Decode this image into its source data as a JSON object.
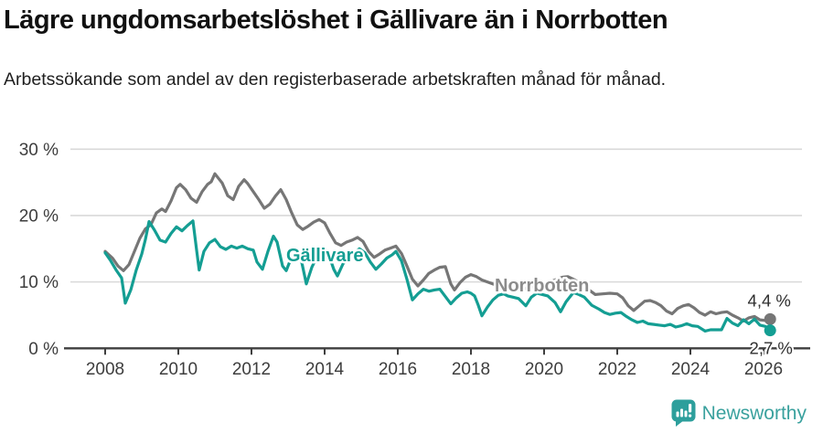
{
  "header": {
    "title": "Lägre ungdomsarbetslöshet i Gällivare än i Norrbotten",
    "subtitle": "Arbetssökande som andel av den registerbaserade arbetskraften månad för månad."
  },
  "footer": {
    "brand": "Newsworthy"
  },
  "colors": {
    "gallivare": "#149e93",
    "norrbotten": "#767676",
    "norrbotten_label": "#8c8c8c",
    "gridline": "#d9d9d9",
    "axis": "#3f3f3f",
    "tick_text": "#3d3d3d",
    "end_label_text": "#2e2e2e",
    "brand_teal": "#3aa19e"
  },
  "chart_data": {
    "type": "line",
    "title": "Lägre ungdomsarbetslöshet i Gällivare än i Norrbotten",
    "subtitle": "Arbetssökande som andel av den registerbaserade arbetskraften månad för månad.",
    "unit": "%",
    "grid": true,
    "legend_position": "inline-labels",
    "x_axis": {
      "tick_years": [
        2008,
        2010,
        2012,
        2014,
        2016,
        2018,
        2020,
        2022,
        2024,
        2026
      ],
      "range": [
        2008.0,
        2026.2
      ]
    },
    "y_axis": {
      "range": [
        0,
        30
      ],
      "ticks": [
        {
          "value": 0,
          "label": "0 %"
        },
        {
          "value": 10,
          "label": "10 %"
        },
        {
          "value": 20,
          "label": "20 %"
        },
        {
          "value": 30,
          "label": "30 %"
        }
      ]
    },
    "series": [
      {
        "name": "Norrbotten",
        "color": "#767676",
        "label_color": "#8c8c8c",
        "label_pos": {
          "year": 2018.65,
          "value": 8.6
        },
        "end_label": "4,4 %",
        "end_value": 4.4,
        "end_label_side": "above",
        "points": [
          [
            2008.0,
            14.6
          ],
          [
            2008.2,
            13.6
          ],
          [
            2008.35,
            12.4
          ],
          [
            2008.5,
            11.7
          ],
          [
            2008.65,
            12.6
          ],
          [
            2008.8,
            14.6
          ],
          [
            2008.95,
            16.6
          ],
          [
            2009.1,
            18.0
          ],
          [
            2009.25,
            18.6
          ],
          [
            2009.4,
            20.4
          ],
          [
            2009.55,
            21.0
          ],
          [
            2009.65,
            20.6
          ],
          [
            2009.8,
            22.2
          ],
          [
            2009.95,
            24.2
          ],
          [
            2010.05,
            24.7
          ],
          [
            2010.2,
            23.9
          ],
          [
            2010.35,
            22.6
          ],
          [
            2010.5,
            22.0
          ],
          [
            2010.65,
            23.6
          ],
          [
            2010.8,
            24.7
          ],
          [
            2010.9,
            25.1
          ],
          [
            2011.0,
            26.3
          ],
          [
            2011.1,
            25.6
          ],
          [
            2011.2,
            24.9
          ],
          [
            2011.35,
            23.0
          ],
          [
            2011.5,
            22.4
          ],
          [
            2011.65,
            24.4
          ],
          [
            2011.8,
            25.4
          ],
          [
            2011.9,
            24.8
          ],
          [
            2012.05,
            23.6
          ],
          [
            2012.2,
            22.4
          ],
          [
            2012.35,
            21.1
          ],
          [
            2012.5,
            21.7
          ],
          [
            2012.65,
            22.9
          ],
          [
            2012.8,
            23.9
          ],
          [
            2012.95,
            22.4
          ],
          [
            2013.1,
            20.4
          ],
          [
            2013.25,
            18.6
          ],
          [
            2013.4,
            17.9
          ],
          [
            2013.55,
            18.4
          ],
          [
            2013.7,
            19.0
          ],
          [
            2013.85,
            19.4
          ],
          [
            2014.0,
            18.9
          ],
          [
            2014.15,
            17.3
          ],
          [
            2014.3,
            15.9
          ],
          [
            2014.45,
            15.5
          ],
          [
            2014.6,
            16.0
          ],
          [
            2014.75,
            16.3
          ],
          [
            2014.9,
            16.7
          ],
          [
            2015.05,
            16.1
          ],
          [
            2015.2,
            14.6
          ],
          [
            2015.35,
            13.7
          ],
          [
            2015.5,
            14.2
          ],
          [
            2015.65,
            14.8
          ],
          [
            2015.8,
            15.1
          ],
          [
            2015.95,
            15.4
          ],
          [
            2016.1,
            14.3
          ],
          [
            2016.25,
            12.4
          ],
          [
            2016.4,
            10.4
          ],
          [
            2016.55,
            9.4
          ],
          [
            2016.7,
            10.3
          ],
          [
            2016.85,
            11.3
          ],
          [
            2017.0,
            11.8
          ],
          [
            2017.15,
            12.2
          ],
          [
            2017.3,
            12.3
          ],
          [
            2017.45,
            9.7
          ],
          [
            2017.55,
            8.8
          ],
          [
            2017.7,
            9.9
          ],
          [
            2017.85,
            10.7
          ],
          [
            2018.0,
            11.1
          ],
          [
            2018.15,
            10.8
          ],
          [
            2018.3,
            10.3
          ],
          [
            2018.5,
            9.9
          ],
          [
            2018.7,
            9.5
          ],
          [
            2018.9,
            9.7
          ],
          [
            2019.1,
            9.7
          ],
          [
            2019.3,
            9.3
          ],
          [
            2019.5,
            9.0
          ],
          [
            2019.7,
            9.3
          ],
          [
            2019.9,
            9.7
          ],
          [
            2020.1,
            9.9
          ],
          [
            2020.3,
            10.3
          ],
          [
            2020.5,
            10.7
          ],
          [
            2020.65,
            10.8
          ],
          [
            2020.8,
            10.4
          ],
          [
            2021.0,
            9.8
          ],
          [
            2021.2,
            8.9
          ],
          [
            2021.4,
            8.1
          ],
          [
            2021.6,
            8.2
          ],
          [
            2021.8,
            8.3
          ],
          [
            2022.0,
            8.2
          ],
          [
            2022.15,
            7.6
          ],
          [
            2022.3,
            6.4
          ],
          [
            2022.45,
            5.7
          ],
          [
            2022.6,
            6.4
          ],
          [
            2022.75,
            7.1
          ],
          [
            2022.9,
            7.2
          ],
          [
            2023.05,
            6.9
          ],
          [
            2023.2,
            6.4
          ],
          [
            2023.35,
            5.6
          ],
          [
            2023.5,
            5.2
          ],
          [
            2023.65,
            6.0
          ],
          [
            2023.8,
            6.4
          ],
          [
            2023.95,
            6.6
          ],
          [
            2024.1,
            6.1
          ],
          [
            2024.25,
            5.4
          ],
          [
            2024.4,
            5.0
          ],
          [
            2024.55,
            5.5
          ],
          [
            2024.7,
            5.2
          ],
          [
            2024.85,
            5.4
          ],
          [
            2025.0,
            5.5
          ],
          [
            2025.15,
            5.0
          ],
          [
            2025.3,
            4.6
          ],
          [
            2025.45,
            4.1
          ],
          [
            2025.6,
            4.6
          ],
          [
            2025.75,
            4.8
          ],
          [
            2025.9,
            4.3
          ],
          [
            2026.05,
            4.2
          ],
          [
            2026.18,
            4.4
          ]
        ]
      },
      {
        "name": "Gällivare",
        "color": "#149e93",
        "label_color": "#149e93",
        "label_pos": {
          "year": 2012.95,
          "value": 13.1
        },
        "end_label": "2,7 %",
        "end_value": 2.7,
        "end_label_side": "below",
        "points": [
          [
            2008.0,
            14.4
          ],
          [
            2008.15,
            13.2
          ],
          [
            2008.3,
            11.8
          ],
          [
            2008.45,
            10.6
          ],
          [
            2008.55,
            6.8
          ],
          [
            2008.7,
            8.8
          ],
          [
            2008.85,
            11.8
          ],
          [
            2009.0,
            14.2
          ],
          [
            2009.1,
            16.4
          ],
          [
            2009.2,
            19.1
          ],
          [
            2009.35,
            17.8
          ],
          [
            2009.5,
            16.3
          ],
          [
            2009.65,
            16.0
          ],
          [
            2009.8,
            17.3
          ],
          [
            2009.95,
            18.3
          ],
          [
            2010.1,
            17.7
          ],
          [
            2010.25,
            18.5
          ],
          [
            2010.4,
            19.2
          ],
          [
            2010.5,
            14.8
          ],
          [
            2010.57,
            11.8
          ],
          [
            2010.7,
            14.6
          ],
          [
            2010.85,
            15.9
          ],
          [
            2011.0,
            16.4
          ],
          [
            2011.15,
            15.3
          ],
          [
            2011.3,
            14.9
          ],
          [
            2011.45,
            15.4
          ],
          [
            2011.6,
            15.1
          ],
          [
            2011.75,
            15.4
          ],
          [
            2011.9,
            15.0
          ],
          [
            2012.05,
            14.8
          ],
          [
            2012.15,
            13.0
          ],
          [
            2012.3,
            11.9
          ],
          [
            2012.45,
            14.6
          ],
          [
            2012.6,
            16.9
          ],
          [
            2012.7,
            16.0
          ],
          [
            2012.85,
            12.4
          ],
          [
            2012.95,
            11.7
          ],
          [
            2013.1,
            13.8
          ],
          [
            2013.2,
            14.8
          ],
          [
            2013.35,
            13.6
          ],
          [
            2013.5,
            9.7
          ],
          [
            2013.65,
            12.2
          ],
          [
            2013.8,
            13.9
          ],
          [
            2013.95,
            14.7
          ],
          [
            2014.1,
            14.3
          ],
          [
            2014.25,
            11.9
          ],
          [
            2014.35,
            10.9
          ],
          [
            2014.5,
            12.7
          ],
          [
            2014.65,
            13.7
          ],
          [
            2014.8,
            14.3
          ],
          [
            2014.95,
            15.0
          ],
          [
            2015.1,
            14.4
          ],
          [
            2015.25,
            13.0
          ],
          [
            2015.4,
            11.9
          ],
          [
            2015.55,
            12.7
          ],
          [
            2015.7,
            13.6
          ],
          [
            2015.85,
            14.1
          ],
          [
            2015.95,
            14.6
          ],
          [
            2016.1,
            13.2
          ],
          [
            2016.25,
            10.4
          ],
          [
            2016.4,
            7.3
          ],
          [
            2016.55,
            8.2
          ],
          [
            2016.7,
            8.9
          ],
          [
            2016.85,
            8.6
          ],
          [
            2017.0,
            8.8
          ],
          [
            2017.15,
            8.9
          ],
          [
            2017.3,
            7.8
          ],
          [
            2017.45,
            6.7
          ],
          [
            2017.6,
            7.6
          ],
          [
            2017.75,
            8.3
          ],
          [
            2017.9,
            8.5
          ],
          [
            2018.0,
            8.3
          ],
          [
            2018.1,
            7.9
          ],
          [
            2018.2,
            6.5
          ],
          [
            2018.3,
            4.9
          ],
          [
            2018.45,
            6.2
          ],
          [
            2018.6,
            7.3
          ],
          [
            2018.75,
            8.0
          ],
          [
            2018.9,
            8.2
          ],
          [
            2019.0,
            7.9
          ],
          [
            2019.15,
            7.7
          ],
          [
            2019.3,
            7.5
          ],
          [
            2019.5,
            6.4
          ],
          [
            2019.65,
            7.7
          ],
          [
            2019.8,
            8.3
          ],
          [
            2019.95,
            8.1
          ],
          [
            2020.1,
            7.9
          ],
          [
            2020.3,
            6.9
          ],
          [
            2020.45,
            5.5
          ],
          [
            2020.6,
            7.0
          ],
          [
            2020.8,
            8.4
          ],
          [
            2020.95,
            8.1
          ],
          [
            2021.1,
            7.7
          ],
          [
            2021.3,
            6.5
          ],
          [
            2021.5,
            5.9
          ],
          [
            2021.65,
            5.4
          ],
          [
            2021.8,
            5.1
          ],
          [
            2021.95,
            5.3
          ],
          [
            2022.1,
            5.4
          ],
          [
            2022.25,
            4.8
          ],
          [
            2022.4,
            4.3
          ],
          [
            2022.55,
            3.9
          ],
          [
            2022.7,
            4.1
          ],
          [
            2022.85,
            3.7
          ],
          [
            2023.0,
            3.6
          ],
          [
            2023.15,
            3.5
          ],
          [
            2023.3,
            3.4
          ],
          [
            2023.45,
            3.6
          ],
          [
            2023.6,
            3.2
          ],
          [
            2023.75,
            3.4
          ],
          [
            2023.9,
            3.7
          ],
          [
            2024.05,
            3.4
          ],
          [
            2024.2,
            3.3
          ],
          [
            2024.4,
            2.6
          ],
          [
            2024.55,
            2.8
          ],
          [
            2024.7,
            2.8
          ],
          [
            2024.85,
            2.8
          ],
          [
            2025.0,
            4.5
          ],
          [
            2025.15,
            3.8
          ],
          [
            2025.3,
            3.4
          ],
          [
            2025.45,
            4.3
          ],
          [
            2025.6,
            3.7
          ],
          [
            2025.75,
            4.4
          ],
          [
            2025.9,
            3.5
          ],
          [
            2026.05,
            3.3
          ],
          [
            2026.18,
            2.7
          ]
        ]
      }
    ]
  }
}
